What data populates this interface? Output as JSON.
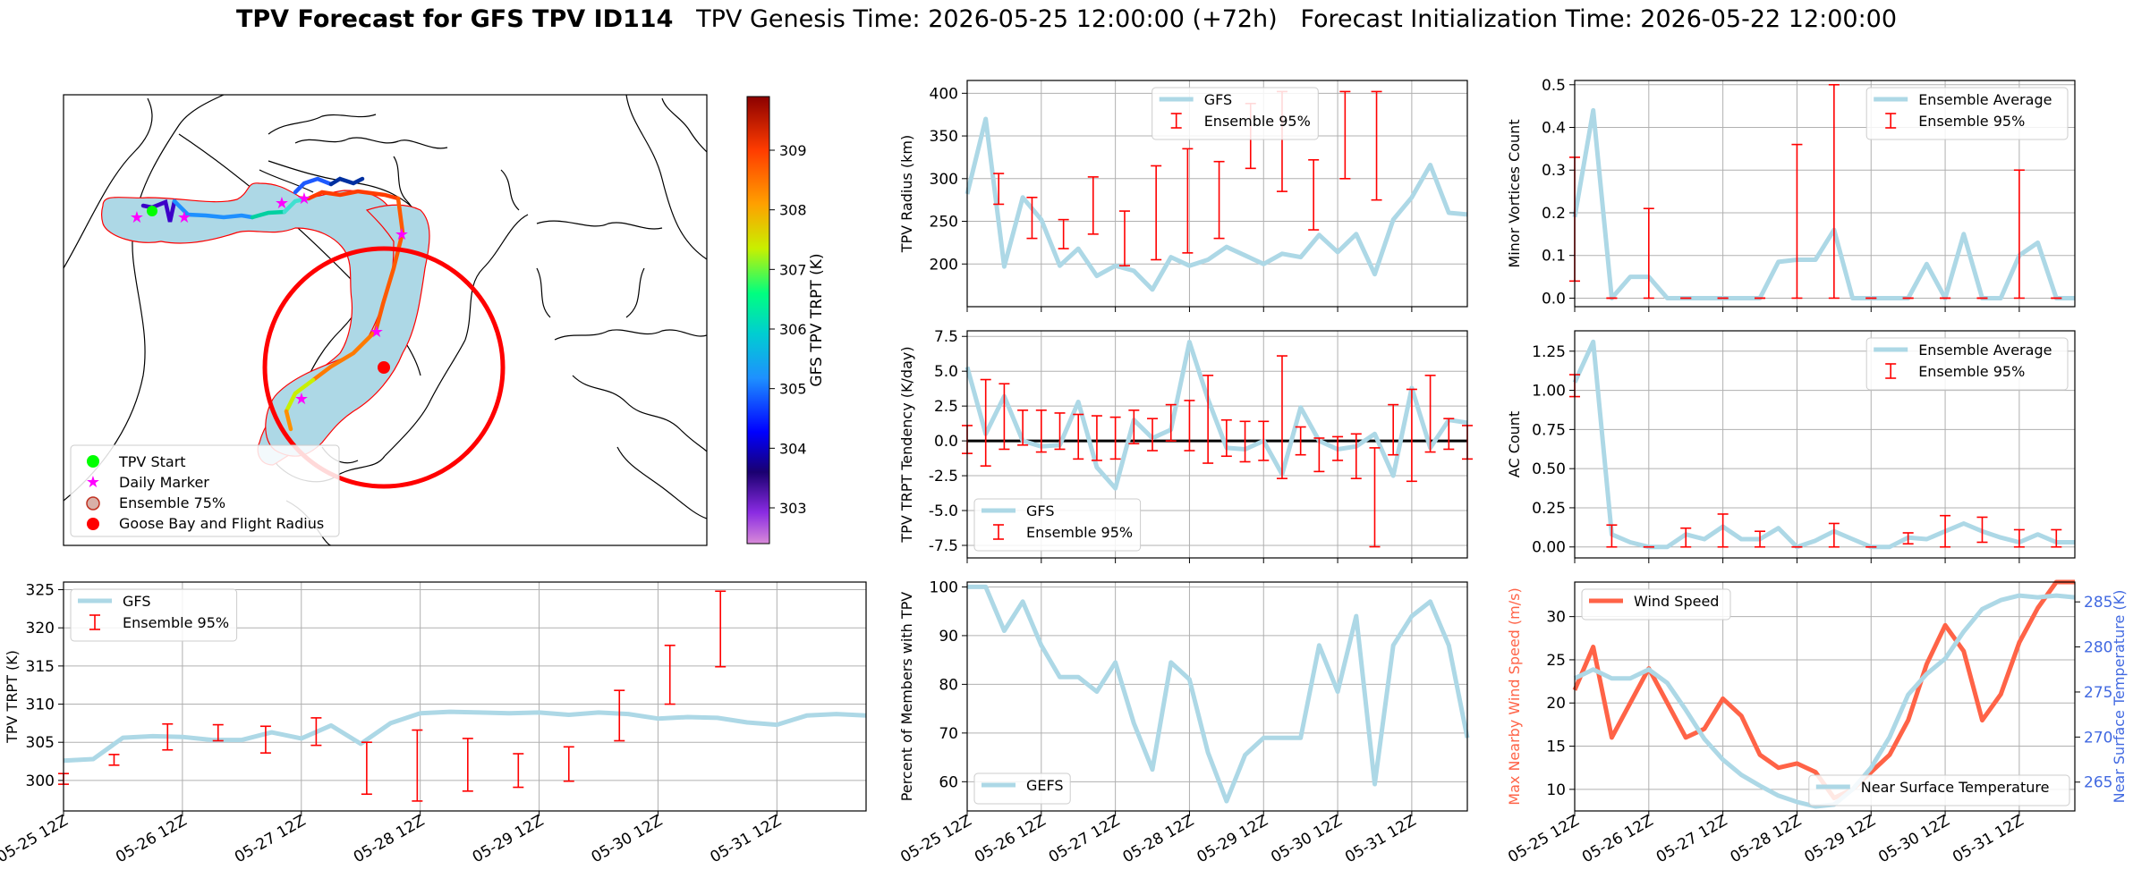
{
  "title": {
    "bold": "TPV Forecast for GFS TPV ID114",
    "genesis": "TPV Genesis Time: 2026-05-25 12:00:00 (+72h)",
    "init": "Forecast Initialization Time: 2026-05-22 12:00:00"
  },
  "colors": {
    "ensemble_line": "#add8e6",
    "error_bar": "#ff0000",
    "wind": "#ff6347",
    "temp_axis": "#4169e1",
    "buffer_fill": "#add8e6",
    "radius_circle": "#ff0000"
  },
  "map": {
    "legend": [
      "TPV Start",
      "Daily Marker",
      "Ensemble 75%",
      "Goose Bay and Flight Radius"
    ],
    "colorbar": {
      "label": "GFS TPV TRPT (K)",
      "ticks": [
        "303",
        "304",
        "305",
        "306",
        "307",
        "308",
        "309"
      ],
      "vmin": 302.4,
      "vmax": 309.9
    }
  },
  "chart_data": [
    {
      "id": "trpt",
      "type": "line",
      "ylabel": "TPV TRPT (K)",
      "ylim": [
        296,
        326
      ],
      "yticks": [
        300,
        305,
        310,
        315,
        320,
        325
      ],
      "xticks": [
        "05-25 12Z",
        "05-26 12Z",
        "05-27 12Z",
        "05-28 12Z",
        "05-29 12Z",
        "05-30 12Z",
        "05-31 12Z"
      ],
      "grid": true,
      "legend_location": "top-left",
      "series": [
        {
          "name": "GFS",
          "values": [
            302.6,
            302.8,
            305.6,
            305.8,
            305.7,
            305.3,
            305.3,
            306.3,
            305.5,
            307.2,
            304.8,
            307.5,
            308.8,
            309.0,
            308.9,
            308.8,
            308.9,
            308.6,
            308.9,
            308.7,
            308.1,
            308.3,
            308.2,
            307.6,
            307.3,
            308.5,
            308.7,
            308.5
          ]
        }
      ],
      "errorbars": {
        "name": "Ensemble 95%",
        "x": [
          0,
          1.7,
          3.5,
          5.2,
          6.8,
          8.5,
          10.2,
          11.9,
          13.6,
          15.3,
          17.0,
          18.7,
          20.4,
          22.1,
          23.8
        ],
        "low": [
          299.5,
          302,
          304,
          305.2,
          303.6,
          304.6,
          298.2,
          297.3,
          298.6,
          299.1,
          299.9,
          305.2,
          310,
          314.9,
          null
        ],
        "high": [
          300.9,
          303.4,
          307.4,
          307.3,
          307.1,
          308.2,
          305.0,
          306.6,
          305.5,
          303.5,
          304.4,
          311.8,
          317.7,
          324.8,
          null
        ]
      }
    },
    {
      "id": "radius",
      "type": "line",
      "ylabel": "TPV Radius (km)",
      "ylim": [
        150,
        415
      ],
      "yticks": [
        200,
        250,
        300,
        350,
        400
      ],
      "grid": true,
      "legend_location": "top-center",
      "series": [
        {
          "name": "GFS",
          "values": [
            282,
            370,
            197,
            278,
            252,
            198,
            218,
            186,
            198,
            192,
            170,
            208,
            198,
            205,
            220,
            210,
            200,
            212,
            208,
            234,
            214,
            235,
            188,
            252,
            278,
            316,
            260,
            258
          ]
        }
      ],
      "errorbars": {
        "name": "Ensemble 95%",
        "x": [
          0,
          1.7,
          3.5,
          5.2,
          6.8,
          8.5,
          10.2,
          11.9,
          13.6,
          15.3,
          17.0,
          18.7,
          20.4,
          22.1,
          23.8
        ],
        "low": [
          null,
          270,
          230,
          218,
          235,
          198,
          205,
          213,
          230,
          312,
          285,
          240,
          300,
          275,
          270
        ],
        "high": [
          null,
          306,
          278,
          252,
          302,
          262,
          315,
          335,
          320,
          388,
          402,
          322,
          402,
          402,
          null
        ]
      }
    },
    {
      "id": "minor",
      "type": "line",
      "ylabel": "Minor Vortices Count",
      "ylim": [
        -0.02,
        0.51
      ],
      "yticks": [
        0.0,
        0.1,
        0.2,
        0.3,
        0.4,
        0.5
      ],
      "grid": true,
      "legend_location": "top-right",
      "series": [
        {
          "name": "Ensemble Average",
          "values": [
            0.19,
            0.44,
            0,
            0.05,
            0.05,
            0,
            0,
            0,
            0,
            0,
            0,
            0.085,
            0.09,
            0.09,
            0.16,
            0,
            0,
            0,
            0,
            0.08,
            0,
            0.15,
            0,
            0,
            0.1,
            0.13,
            0,
            0
          ]
        }
      ],
      "errorbars": {
        "name": "Ensemble 95%",
        "x": [
          0,
          2.0,
          4.0,
          6.0,
          8.0,
          10.0,
          12.0,
          14.0,
          16.0,
          18.0,
          20.0,
          22.0,
          24.0,
          26.0
        ],
        "low": [
          0.04,
          0,
          0,
          0,
          0,
          0,
          0,
          0,
          0,
          0,
          0,
          0,
          0,
          0
        ],
        "high": [
          0.33,
          0,
          0.21,
          0,
          0,
          0,
          0.36,
          0.5,
          0,
          0,
          0,
          0,
          0.3,
          0
        ]
      }
    },
    {
      "id": "tendency",
      "type": "line",
      "ylabel": "TPV TRPT Tendency (K/day)",
      "ylim": [
        -8.4,
        7.9
      ],
      "yticks": [
        -7.5,
        -5.0,
        -2.5,
        0.0,
        2.5,
        5.0,
        7.5
      ],
      "zero_line": true,
      "grid": true,
      "legend_location": "bottom-left",
      "series": [
        {
          "name": "GFS",
          "values": [
            5.3,
            0.5,
            3.2,
            0,
            -0.4,
            -0.3,
            2.8,
            -1.9,
            -3.4,
            1.5,
            0.2,
            0.8,
            7.1,
            3.0,
            -0.5,
            -0.6,
            0,
            -2.4,
            2.4,
            0,
            -0.6,
            -0.4,
            0.5,
            -2.5,
            3.8,
            -0.5,
            1.5,
            1.3
          ]
        }
      ],
      "errorbars": {
        "name": "Ensemble 95%",
        "x": [
          0,
          1.0,
          2.0,
          3.0,
          4.0,
          5.0,
          6.0,
          7.0,
          8.0,
          9.0,
          10.0,
          11.0,
          12.0,
          13.0,
          14.0,
          15.0,
          16.0,
          17.0,
          18.0,
          19.0,
          20.0,
          21.0,
          22.0,
          23.0,
          24.0,
          25.0,
          26.0,
          27.0
        ],
        "low": [
          -0.9,
          -1.8,
          -0.6,
          -0.3,
          -0.8,
          -0.6,
          -1.3,
          -1.4,
          -1.3,
          -0.2,
          -0.7,
          0,
          -0.7,
          -1.6,
          -1.1,
          -1.5,
          -1.4,
          -2.7,
          -1.0,
          -2.2,
          -1.4,
          -2.7,
          -7.6,
          -1.0,
          -2.9,
          -0.8,
          -0.6,
          -1.3
        ],
        "high": [
          1.1,
          4.4,
          4.1,
          2.2,
          2.2,
          2.0,
          1.9,
          1.8,
          1.7,
          2.2,
          1.6,
          2.6,
          2.9,
          4.7,
          1.5,
          1.4,
          1.4,
          6.1,
          1.0,
          0.2,
          0.3,
          0.5,
          -0.5,
          2.6,
          3.7,
          4.7,
          1.6,
          1.1
        ]
      }
    },
    {
      "id": "ac",
      "type": "line",
      "ylabel": "AC Count",
      "ylim": [
        -0.07,
        1.38
      ],
      "yticks": [
        0.0,
        0.25,
        0.5,
        0.75,
        1.0,
        1.25
      ],
      "grid": true,
      "legend_location": "top-right",
      "series": [
        {
          "name": "Ensemble Average",
          "values": [
            1.05,
            1.31,
            0.08,
            0.03,
            0,
            0,
            0.08,
            0.05,
            0.13,
            0.05,
            0.05,
            0.12,
            0,
            0.04,
            0.1,
            0.05,
            0,
            0,
            0.06,
            0.05,
            0.1,
            0.15,
            0.1,
            0.06,
            0.03,
            0.08,
            0.03,
            0.03
          ]
        }
      ],
      "errorbars": {
        "name": "Ensemble 95%",
        "x": [
          0,
          2.0,
          4.0,
          6.0,
          8.0,
          10.0,
          12.0,
          14.0,
          16.0,
          18.0,
          20.0,
          22.0,
          24.0,
          26.0
        ],
        "low": [
          0.96,
          0,
          0,
          0,
          0,
          0,
          0,
          0,
          0,
          0.02,
          0,
          0.03,
          0,
          0
        ],
        "high": [
          1.1,
          0.14,
          0,
          0.12,
          0.21,
          0.1,
          0,
          0.15,
          0,
          0.09,
          0.2,
          0.19,
          0.11,
          0.11
        ]
      }
    },
    {
      "id": "percent",
      "type": "line",
      "ylabel": "Percent of Members with TPV",
      "ylim": [
        54,
        101
      ],
      "yticks": [
        60,
        70,
        80,
        90,
        100
      ],
      "grid": true,
      "legend_location": "bottom-left",
      "series": [
        {
          "name": "GEFS",
          "values": [
            100,
            100,
            91,
            97,
            88,
            81.5,
            81.5,
            78.5,
            84.5,
            72,
            62.5,
            84.5,
            81,
            66,
            56,
            65.5,
            69,
            69,
            69,
            88,
            78.5,
            94,
            59.5,
            88,
            94,
            97,
            88,
            69
          ]
        }
      ]
    },
    {
      "id": "wind_temp",
      "type": "line",
      "ylabel": "Max Nearby Wind Speed (m/s)",
      "y2label": "Near Surface Temperature (K)",
      "ylim": [
        7.5,
        34
      ],
      "yticks": [
        10,
        15,
        20,
        25,
        30
      ],
      "y2lim": [
        261.8,
        287.2
      ],
      "y2ticks": [
        265,
        270,
        275,
        280,
        285
      ],
      "grid": true,
      "legend_location": "top-left",
      "legend2_location": "bottom-right",
      "series": [
        {
          "name": "Wind Speed",
          "axis": "left",
          "values": [
            21.5,
            26.5,
            16,
            20,
            24,
            20,
            16,
            17,
            20.5,
            18.5,
            14,
            12.5,
            13,
            12,
            9,
            10,
            12,
            14,
            18,
            24.5,
            29,
            26,
            18,
            21,
            27,
            31,
            34,
            34
          ]
        },
        {
          "name": "Near Surface Temperature",
          "axis": "right",
          "values": [
            276.5,
            277.5,
            276.5,
            276.5,
            277.5,
            276,
            273,
            269.8,
            267.5,
            265.8,
            264.6,
            263.5,
            262.8,
            262.3,
            262.5,
            264.2,
            266.6,
            270,
            274.7,
            277,
            278.7,
            281.7,
            284.2,
            285.2,
            285.7,
            285.5,
            285.7,
            285.5
          ]
        }
      ]
    }
  ]
}
